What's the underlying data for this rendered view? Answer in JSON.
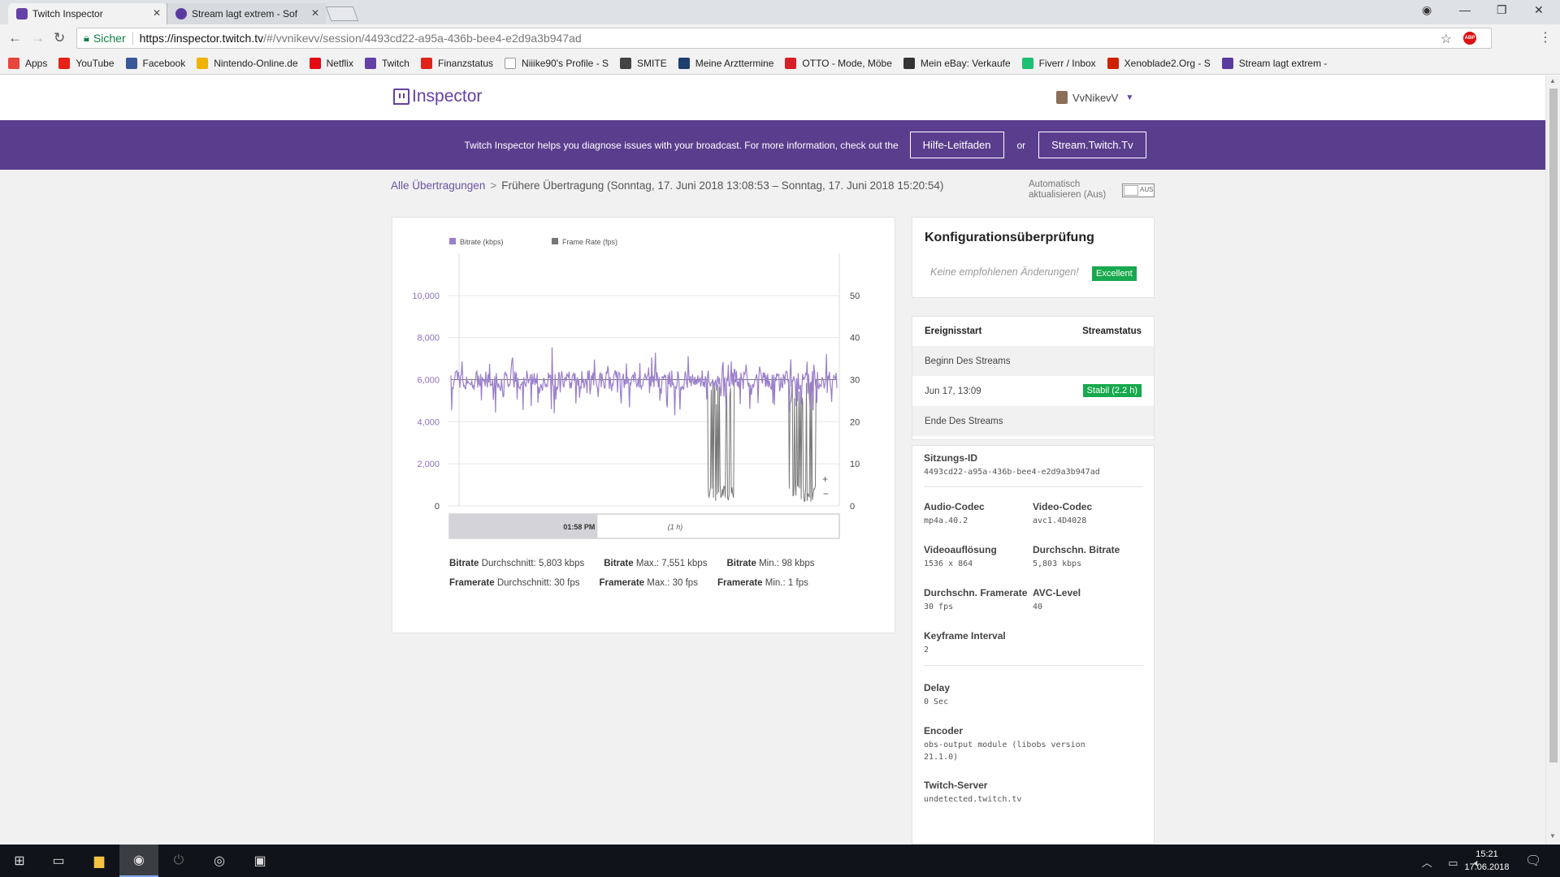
{
  "browser": {
    "tabs": [
      {
        "label": "Twitch Inspector",
        "icon_color": "#6441a4"
      },
      {
        "label": "Stream lagt extrem - Soft",
        "icon_color": "#5b3aa0"
      }
    ],
    "address": {
      "secure_label": "Sicher",
      "url_host": "https://inspector.twitch.tv",
      "url_path": "/#/vvnikevv/session/4493cd22-a95a-436b-bee4-e2d9a3b947ad"
    },
    "abp_label": "ABP",
    "bookmarks": [
      {
        "label": "Apps",
        "color": "#e8453c"
      },
      {
        "label": "YouTube",
        "color": "#e62117"
      },
      {
        "label": "Facebook",
        "color": "#3b5998"
      },
      {
        "label": "Nintendo-Online.de",
        "color": "#f0b400"
      },
      {
        "label": "Netflix",
        "color": "#e50914"
      },
      {
        "label": "Twitch",
        "color": "#6441a4"
      },
      {
        "label": "Finanzstatus",
        "color": "#e2231a"
      },
      {
        "label": "Niiike90's Profile - S",
        "color": "#ffffff"
      },
      {
        "label": "SMITE",
        "color": "#444444"
      },
      {
        "label": "Meine Arzttermine",
        "color": "#1d3f6e"
      },
      {
        "label": "OTTO - Mode, Möbe",
        "color": "#d61f26"
      },
      {
        "label": "Mein eBay: Verkaufe",
        "color": "#333333"
      },
      {
        "label": "Fiverr / Inbox",
        "color": "#1dbf73"
      },
      {
        "label": "Xenoblade2.Org - S",
        "color": "#cc2200"
      },
      {
        "label": "Stream lagt extrem -",
        "color": "#5b3aa0"
      }
    ]
  },
  "header": {
    "logo_text": "Inspector",
    "user_name": "VvNikevV"
  },
  "banner": {
    "text": "Twitch Inspector helps you diagnose issues with your broadcast. For more information, check out the",
    "guide_button": "Hilfe-Leitfaden",
    "or_text": "or",
    "stream_button": "Stream.Twitch.Tv"
  },
  "breadcrumb": {
    "link": "Alle Übertragungen",
    "separator": ">",
    "current": "Frühere Übertragung (Sonntag, 17. Juni 2018 13:08:53 – Sonntag, 17. Juni 2018 15:20:54)"
  },
  "auto_refresh": {
    "label": "Automatisch aktualisieren (Aus)",
    "toggle_text": "AUS"
  },
  "chart_data": {
    "type": "line",
    "series": [
      {
        "name": "Bitrate (kbps)",
        "color": "#9b7fcb",
        "axis": "left",
        "baseline": 6000,
        "min": 98,
        "max": 7551,
        "avg": 5803
      },
      {
        "name": "Frame Rate (fps)",
        "color": "#777777",
        "axis": "right",
        "baseline": 30,
        "min": 1,
        "max": 30,
        "avg": 30
      }
    ],
    "y_left_ticks": [
      "0",
      "2,000",
      "4,000",
      "6,000",
      "8,000",
      "10,000"
    ],
    "y_right_ticks": [
      "0",
      "10",
      "20",
      "30",
      "40",
      "50"
    ],
    "ylim_left": [
      0,
      12000
    ],
    "ylim_right": [
      0,
      60
    ],
    "frame_drop_intervals": [
      [
        0.665,
        0.735
      ],
      [
        0.875,
        0.945
      ]
    ],
    "zoom_in": "+",
    "zoom_out": "−",
    "range_marker": "01:58 PM",
    "range_window": "(1 h)",
    "range_fraction": 0.38
  },
  "stats": [
    {
      "label": "Bitrate",
      "sub": "Durchschnitt:",
      "value": "5,803 kbps"
    },
    {
      "label": "Bitrate",
      "sub": "Max.:",
      "value": "7,551 kbps"
    },
    {
      "label": "Bitrate",
      "sub": "Min.:",
      "value": "98 kbps"
    },
    {
      "label": "Framerate",
      "sub": "Durchschnitt:",
      "value": "30 fps"
    },
    {
      "label": "Framerate",
      "sub": "Max.:",
      "value": "30 fps"
    },
    {
      "label": "Framerate",
      "sub": "Min.:",
      "value": "1 fps"
    }
  ],
  "config": {
    "title": "Konfigurationsüberprüfung",
    "message": "Keine empfohlenen Änderungen!",
    "badge": "Excellent"
  },
  "events": {
    "col_start": "Ereignisstart",
    "col_status": "Streamstatus",
    "rows": [
      {
        "label": "Beginn Des Streams"
      },
      {
        "label": "Jun 17, 13:09",
        "status": "Stabil (2.2 h)"
      },
      {
        "label": "Ende Des Streams"
      }
    ]
  },
  "session": {
    "id_label": "Sitzungs-ID",
    "id_value": "4493cd22-a95a-436b-bee4-e2d9a3b947ad",
    "audio_codec_label": "Audio-Codec",
    "audio_codec": "mp4a.40.2",
    "video_codec_label": "Video-Codec",
    "video_codec": "avc1.4D4028",
    "resolution_label": "Videoauflösung",
    "resolution": "1536 x 864",
    "avg_bitrate_label": "Durchschn. Bitrate",
    "avg_bitrate": "5,803 kbps",
    "avg_framerate_label": "Durchschn. Framerate",
    "avg_framerate": "30 fps",
    "avc_level_label": "AVC-Level",
    "avc_level": "40",
    "keyframe_label": "Keyframe Interval",
    "keyframe": "2",
    "delay_label": "Delay",
    "delay": "0 Sec",
    "encoder_label": "Encoder",
    "encoder": "obs-output module (libobs version 21.1.0)",
    "server_label": "Twitch-Server",
    "server": "undetected.twitch.tv"
  },
  "taskbar": {
    "time": "15:21",
    "date": "17.06.2018"
  }
}
